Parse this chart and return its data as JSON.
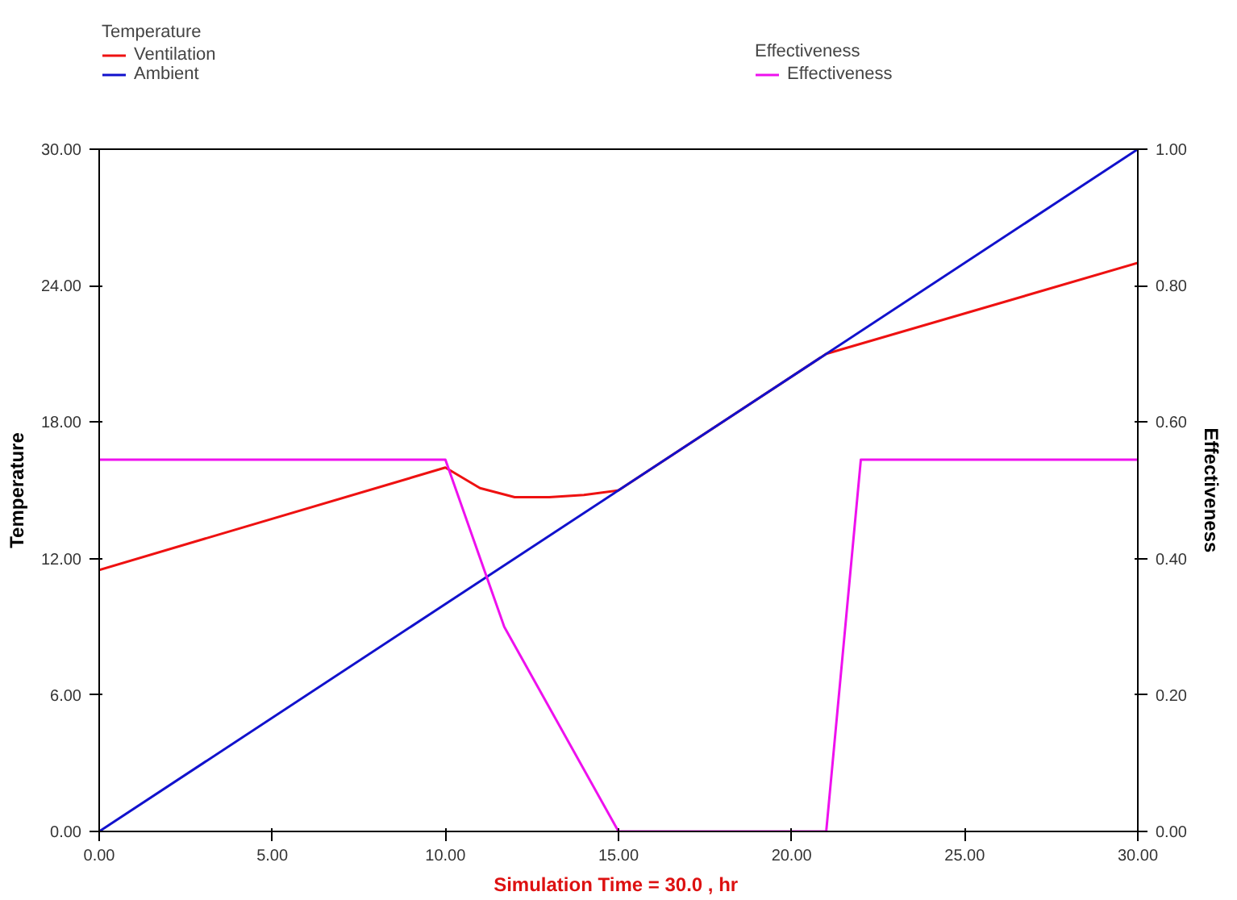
{
  "chart_data": {
    "type": "line",
    "xlabel": "Simulation Time =  30.0 , hr",
    "ylabel": "Temperature",
    "y2label": "Effectiveness",
    "legend_title": "Temperature",
    "annotations": [
      "Effectiveness"
    ],
    "legend": "top left",
    "grid": false,
    "marker": "none",
    "line_style": "solid",
    "series": [
      {
        "name": "Ventilation",
        "color": "#ee1111",
        "x": [
          0,
          10,
          11,
          12,
          13,
          14,
          15,
          21,
          30
        ],
        "values": [
          11.5,
          16.0,
          15.1,
          14.7,
          14.7,
          14.8,
          15.0,
          21.0,
          25.0
        ]
      },
      {
        "name": "Ambient",
        "color": "#1111cc",
        "x": [
          0,
          30
        ],
        "values": [
          0,
          30
        ]
      },
      {
        "name": "Effectiveness",
        "color": "#ee11ee",
        "axis": "y2",
        "x": [
          0,
          10,
          11.7,
          15,
          21,
          22,
          30
        ],
        "values": [
          0.545,
          0.545,
          0.3,
          0,
          0,
          0.545,
          0.545
        ]
      }
    ],
    "xlim": [
      0,
      30
    ],
    "xticks": [
      {
        "value": 0,
        "label": "0.00"
      },
      {
        "value": 5,
        "label": "5.00"
      },
      {
        "value": 10,
        "label": "10.00"
      },
      {
        "value": 15,
        "label": "15.00"
      },
      {
        "value": 20,
        "label": "20.00"
      },
      {
        "value": 25,
        "label": "25.00"
      },
      {
        "value": 30,
        "label": "30.00"
      }
    ],
    "ylim": [
      0,
      30
    ],
    "yticks": [
      {
        "value": 0,
        "label": "0.00"
      },
      {
        "value": 6,
        "label": "6.00"
      },
      {
        "value": 12,
        "label": "12.00"
      },
      {
        "value": 18,
        "label": "18.00"
      },
      {
        "value": 24,
        "label": "24.00"
      },
      {
        "value": 30,
        "label": "30.00"
      }
    ],
    "y2lim": [
      0,
      1
    ],
    "y2ticks": [
      {
        "value": 0,
        "label": "0.00"
      },
      {
        "value": 0.2,
        "label": "0.20"
      },
      {
        "value": 0.4,
        "label": "0.40"
      },
      {
        "value": 0.6,
        "label": "0.60"
      },
      {
        "value": 0.8,
        "label": "0.80"
      },
      {
        "value": 1,
        "label": "1.00"
      }
    ]
  }
}
